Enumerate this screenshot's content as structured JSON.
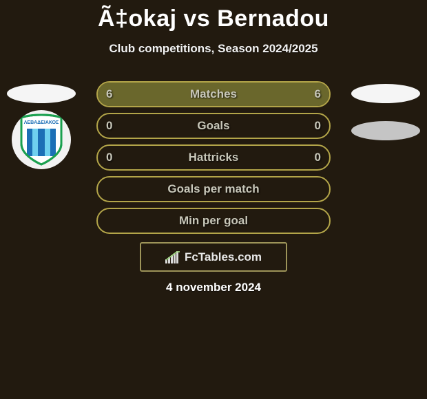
{
  "header": {
    "title": "Ã‡okaj vs Bernadou",
    "subtitle": "Club competitions, Season 2024/2025"
  },
  "rows": [
    {
      "label": "Matches",
      "left": "6",
      "right": "6",
      "fill_left_pct": 50,
      "fill_right_pct": 50,
      "show_values": true
    },
    {
      "label": "Goals",
      "left": "0",
      "right": "0",
      "fill_left_pct": 0,
      "fill_right_pct": 0,
      "show_values": true
    },
    {
      "label": "Hattricks",
      "left": "0",
      "right": "0",
      "fill_left_pct": 0,
      "fill_right_pct": 0,
      "show_values": true
    },
    {
      "label": "Goals per match",
      "left": "",
      "right": "",
      "fill_left_pct": 0,
      "fill_right_pct": 0,
      "show_values": false
    },
    {
      "label": "Min per goal",
      "left": "",
      "right": "",
      "fill_left_pct": 0,
      "fill_right_pct": 0,
      "show_values": false
    }
  ],
  "styles": {
    "border_color": "#b3a549",
    "fill_color": "#6a672c",
    "label_color": "#c8c7b9",
    "background": "#221a0f",
    "title_color": "#ffffff"
  },
  "left_side": {
    "player_placeholder": true,
    "club_name": "ΛΕΒΑΔΕΙΑΚΟΣ",
    "club_colors": {
      "primary": "#1aa04f",
      "secondary": "#1c6fb6",
      "accent": "#6fd0ef"
    }
  },
  "right_side": {
    "player_placeholder": true,
    "club_placeholder": true
  },
  "brand": {
    "text": "FcTables.com",
    "icon": "bar-chart-icon"
  },
  "date": "4 november 2024"
}
